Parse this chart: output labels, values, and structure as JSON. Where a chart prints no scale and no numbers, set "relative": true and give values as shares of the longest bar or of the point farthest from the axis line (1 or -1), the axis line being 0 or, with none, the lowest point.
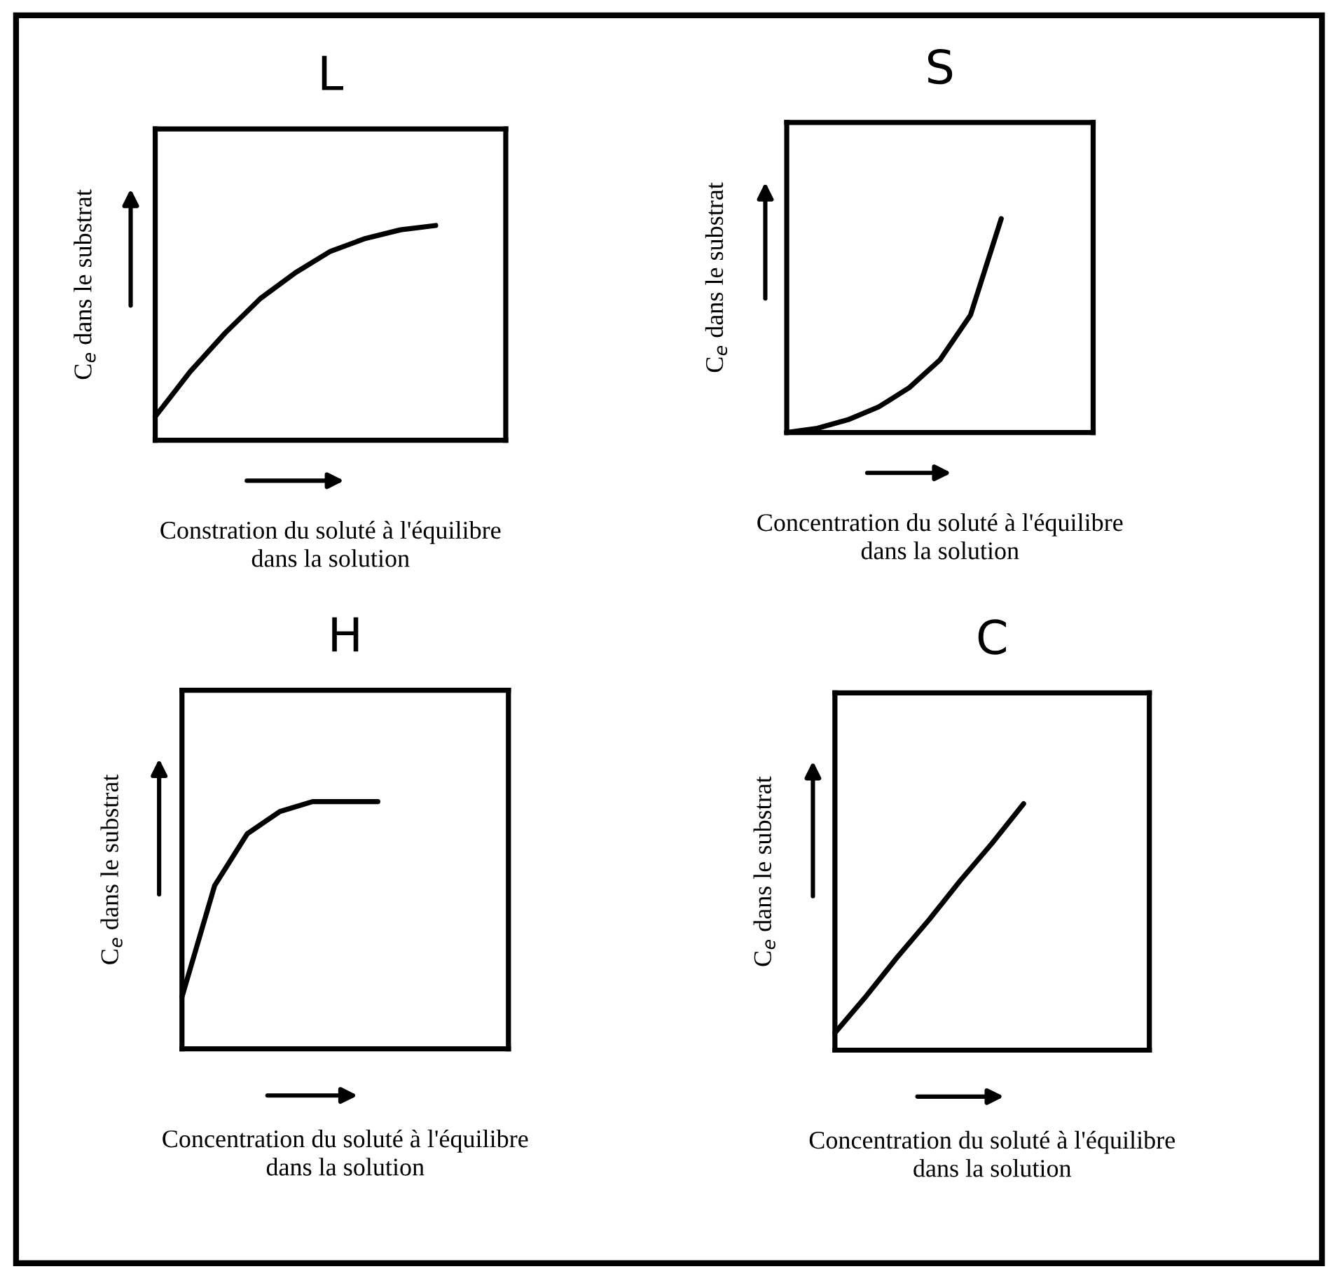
{
  "chart_data": [
    {
      "type": "line",
      "title": "L",
      "xlabel": "Constration du soluté à l'équilibre\ndans la solution",
      "ylabel": "C$_{e}$ dans le substrat",
      "relative": true,
      "categories": [
        null,
        null,
        null,
        null,
        null,
        null,
        null,
        null,
        null,
        null,
        null
      ],
      "series": [
        {
          "color": "#000000",
          "values": [
            0.11,
            0.32,
            0.5,
            0.66,
            0.78,
            0.88,
            0.94,
            0.98,
            1.0,
            null,
            null
          ]
        }
      ]
    },
    {
      "type": "line",
      "title": "S",
      "xlabel": "Concentration du soluté à l'équilibre\ndans la solution",
      "ylabel": "C$_{e}$ dans le substrat",
      "relative": true,
      "categories": [
        null,
        null,
        null,
        null,
        null,
        null,
        null,
        null,
        null,
        null,
        null
      ],
      "series": [
        {
          "color": "#000000",
          "values": [
            0.0,
            0.02,
            0.06,
            0.12,
            0.21,
            0.34,
            0.55,
            1.0,
            null,
            null,
            null
          ]
        }
      ]
    },
    {
      "type": "line",
      "title": "H",
      "xlabel": "Concentration du soluté à l'équilibre\ndans la solution",
      "ylabel": "C$_{e}$ dans le substrat",
      "relative": true,
      "categories": [
        null,
        null,
        null,
        null,
        null,
        null,
        null,
        null,
        null,
        null,
        null
      ],
      "series": [
        {
          "color": "#000000",
          "values": [
            0.21,
            0.66,
            0.87,
            0.96,
            1.0,
            1.0,
            1.0,
            null,
            null,
            null,
            null
          ]
        }
      ]
    },
    {
      "type": "line",
      "title": "C",
      "xlabel": "Concentration du soluté à l'équilibre\ndans la solution",
      "ylabel": "C$_{e}$ dans le substrat",
      "relative": true,
      "categories": [
        null,
        null,
        null,
        null,
        null,
        null,
        null,
        null,
        null,
        null,
        null
      ],
      "series": [
        {
          "color": "#000000",
          "values": [
            0.07,
            0.22,
            0.38,
            0.53,
            0.69,
            0.84,
            1.0,
            null,
            null,
            null,
            null
          ]
        }
      ]
    }
  ]
}
